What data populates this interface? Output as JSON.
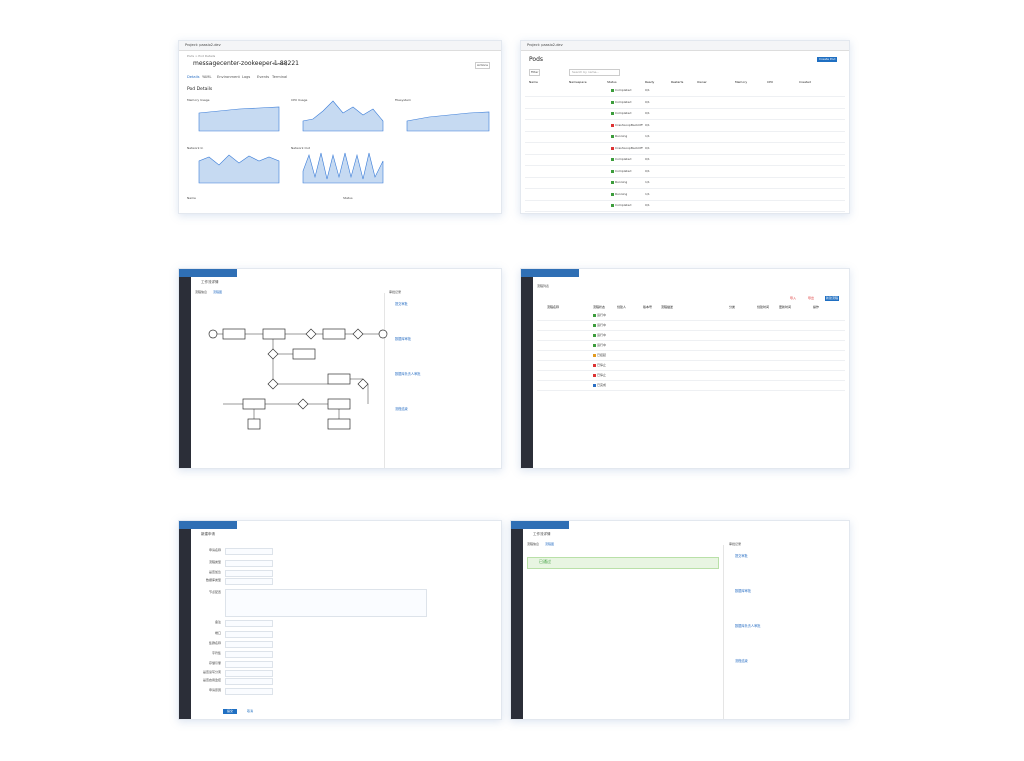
{
  "pod_details": {
    "project": "Project: paasio2-dev",
    "breadcrumb": "Pods > Pod Details",
    "title": "messagecenter-zookeeper-1-88221",
    "status": "Running",
    "actions": "Actions",
    "tabs": [
      "Details",
      "YAML",
      "Environment",
      "Logs",
      "Events",
      "Terminal"
    ],
    "section": "Pod Details",
    "charts": [
      "Memory Usage",
      "CPU Usage",
      "Filesystem",
      "Network In",
      "Network Out"
    ],
    "fields": [
      "Name",
      "Status"
    ]
  },
  "pods": {
    "project": "Project: paasio2-dev",
    "title": "Pods",
    "create": "Create Pod",
    "filter": "Filter",
    "search": "Search by name...",
    "headers": [
      "Name",
      "Namespace",
      "Status",
      "Ready",
      "Restarts",
      "Owner",
      "Memory",
      "CPU",
      "Created"
    ],
    "rows": [
      {
        "status": "Completed",
        "ready": "0/1"
      },
      {
        "status": "Completed",
        "ready": "0/1"
      },
      {
        "status": "Completed",
        "ready": "0/1"
      },
      {
        "status": "CrashLoopBackOff",
        "ready": "0/1"
      },
      {
        "status": "Running",
        "ready": "1/1"
      },
      {
        "status": "CrashLoopBackOff",
        "ready": "0/1"
      },
      {
        "status": "Completed",
        "ready": "0/1"
      },
      {
        "status": "Completed",
        "ready": "0/1"
      },
      {
        "status": "Running",
        "ready": "1/1"
      },
      {
        "status": "Running",
        "ready": "1/1"
      },
      {
        "status": "Completed",
        "ready": "0/1"
      }
    ]
  },
  "workflow": {
    "title": "工作流详情",
    "tabs": [
      "流程信息",
      "流程图"
    ],
    "records_title": "审批记录",
    "records": [
      "提交审批",
      "数据库审批",
      "数据库负责人审批",
      "流程结束"
    ]
  },
  "workflow_list": {
    "title": "流程列表",
    "buttons": [
      "导入",
      "导出",
      "新建流程"
    ],
    "headers": [
      "流程名称",
      "流程状态",
      "创建人",
      "版本号",
      "流程描述",
      "分类",
      "创建时间",
      "更新时间",
      "操作"
    ],
    "rows": [
      {
        "status": "运行中"
      },
      {
        "status": "运行中"
      },
      {
        "status": "运行中"
      },
      {
        "status": "运行中"
      },
      {
        "status": "已挂起"
      },
      {
        "status": "已停止"
      },
      {
        "status": "已停止"
      },
      {
        "status": "已完成"
      }
    ]
  },
  "form": {
    "title": "新建申请",
    "labels": [
      "申请名称",
      "流程类型",
      "是否加急",
      "数据库类型",
      "节点配置",
      "备注",
      "端口",
      "集群名称",
      "字符集",
      "存储引擎",
      "是否读写分离",
      "是否启用监控",
      "申请原因"
    ],
    "submit": "提交",
    "cancel": "取消"
  },
  "workflow_detail": {
    "title": "工作流详情",
    "tabs": [
      "流程信息",
      "流程图"
    ],
    "banner": "已通过",
    "records_title": "审批记录",
    "records": [
      "提交审批",
      "数据库审批",
      "数据库负责人审批",
      "流程结束"
    ]
  }
}
